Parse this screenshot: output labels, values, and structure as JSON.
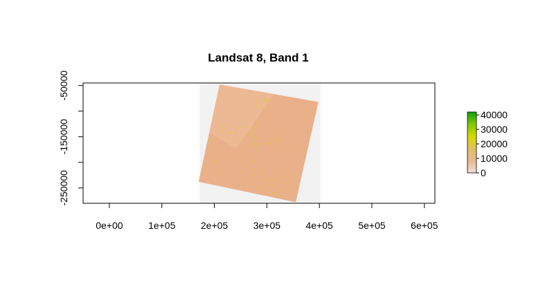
{
  "chart_data": {
    "type": "heatmap",
    "title": "Landsat 8, Band 1",
    "xlabel": "",
    "ylabel": "",
    "xlim": [
      -50000,
      620000
    ],
    "ylim": [
      -280000,
      -45000
    ],
    "x_ticks": [
      0,
      100000,
      200000,
      300000,
      400000,
      500000,
      600000
    ],
    "x_tick_labels": [
      "0e+00",
      "1e+05",
      "2e+05",
      "3e+05",
      "4e+05",
      "5e+05",
      "6e+05"
    ],
    "y_ticks": [
      -50000,
      -100000,
      -150000,
      -200000,
      -250000
    ],
    "y_tick_labels": [
      "-50000",
      "",
      "-150000",
      "",
      "-250000"
    ],
    "raster_extent": {
      "xmin": 172000,
      "xmax": 402000,
      "ymin": -280000,
      "ymax": -45000
    },
    "nodata_color": "#f2f2f2",
    "scene_corners": [
      [
        210000,
        -48000
      ],
      [
        398000,
        -82000
      ],
      [
        355000,
        -278000
      ],
      [
        170000,
        -238000
      ]
    ],
    "scene_base_color": "#e9b08a",
    "legend": {
      "position": "right",
      "ticks": [
        0,
        10000,
        20000,
        30000,
        40000
      ],
      "tick_labels": [
        "0",
        "10000",
        "20000",
        "30000",
        "40000"
      ],
      "colors": [
        "#f2dcd8",
        "#e8b88e",
        "#e0c060",
        "#d6d800",
        "#80c800",
        "#10a010"
      ]
    }
  }
}
